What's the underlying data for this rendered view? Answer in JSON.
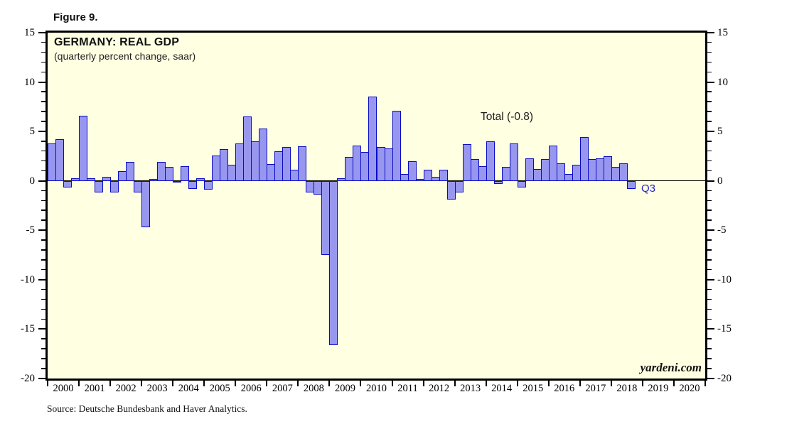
{
  "figure_label": "Figure 9.",
  "chart": {
    "title": "GERMANY: REAL GDP",
    "subtitle": "(quarterly percent change, saar)",
    "annotation": "Total (-0.8)",
    "q3_label": "Q3",
    "watermark": "yardeni.com",
    "source": "Source: Deutsche Bundesbank and Haver Analytics."
  },
  "chart_data": {
    "type": "bar",
    "title": "GERMANY: REAL GDP",
    "subtitle": "(quarterly percent change, saar)",
    "ylabel": "quarterly percent change, saar",
    "ylim": [
      -20,
      15
    ],
    "y_major_tick_labels": [
      "15",
      "10",
      "5",
      "0",
      "-5",
      "-10",
      "-15",
      "-20"
    ],
    "y_major_tick_values": [
      15,
      10,
      5,
      0,
      -5,
      -10,
      -15,
      -20
    ],
    "y_minor_tick_step": 1,
    "x_axis_year_labels": [
      "2000",
      "2001",
      "2002",
      "2003",
      "2004",
      "2005",
      "2006",
      "2007",
      "2008",
      "2009",
      "2010",
      "2011",
      "2012",
      "2013",
      "2014",
      "2015",
      "2016",
      "2017",
      "2018",
      "2019",
      "2020"
    ],
    "x_axis_span_years": 21,
    "first_quarter": "2000Q1",
    "last_quarter": "2018Q3",
    "series_by_year": [
      {
        "year": "2000",
        "values": [
          3.8,
          4.2,
          -0.7,
          0.3
        ]
      },
      {
        "year": "2001",
        "values": [
          6.6,
          0.3,
          -1.2,
          0.4
        ]
      },
      {
        "year": "2002",
        "values": [
          -1.2,
          1.0,
          1.9,
          -1.2
        ]
      },
      {
        "year": "2003",
        "values": [
          -4.7,
          0.2,
          1.9,
          1.4
        ]
      },
      {
        "year": "2004",
        "values": [
          -0.1,
          1.5,
          -0.8,
          0.3
        ]
      },
      {
        "year": "2005",
        "values": [
          -0.9,
          2.6,
          3.2,
          1.6
        ]
      },
      {
        "year": "2006",
        "values": [
          3.8,
          6.5,
          4.0,
          5.3
        ]
      },
      {
        "year": "2007",
        "values": [
          1.7,
          3.0,
          3.4,
          1.1
        ]
      },
      {
        "year": "2008",
        "values": [
          3.5,
          -1.2,
          -1.4,
          -7.5
        ]
      },
      {
        "year": "2009",
        "values": [
          -16.6,
          0.3,
          2.4,
          3.6
        ]
      },
      {
        "year": "2010",
        "values": [
          2.9,
          8.5,
          3.4,
          3.3
        ]
      },
      {
        "year": "2011",
        "values": [
          7.1,
          0.7,
          2.0,
          0.2
        ]
      },
      {
        "year": "2012",
        "values": [
          1.1,
          0.4,
          1.1,
          -1.9
        ]
      },
      {
        "year": "2013",
        "values": [
          -1.2,
          3.7,
          2.2,
          1.5
        ]
      },
      {
        "year": "2014",
        "values": [
          4.0,
          -0.3,
          1.4,
          3.8
        ]
      },
      {
        "year": "2015",
        "values": [
          -0.7,
          2.3,
          1.2,
          2.2
        ]
      },
      {
        "year": "2016",
        "values": [
          3.6,
          1.8,
          0.7,
          1.6
        ]
      },
      {
        "year": "2017",
        "values": [
          4.4,
          2.2,
          2.3,
          2.5
        ]
      },
      {
        "year": "2018",
        "values": [
          1.4,
          1.8,
          -0.8
        ]
      }
    ],
    "annotation": "Total (-0.8)",
    "last_bar_label": "Q3",
    "legend": "none",
    "grid": "off",
    "colors": {
      "plot_background": "#ffffe2",
      "bar_fill": "#9897f0",
      "bar_stroke": "#0a0ac4",
      "axis": "#000000",
      "q3_label": "#2222cc"
    }
  }
}
